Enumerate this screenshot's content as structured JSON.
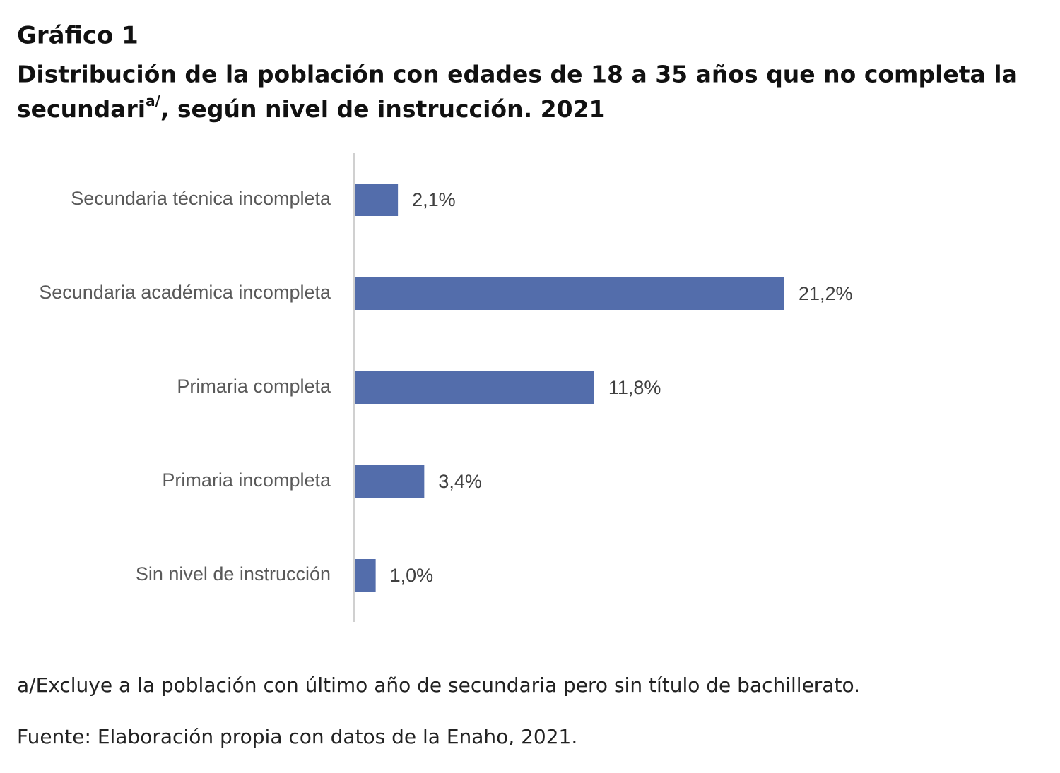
{
  "chart_data": {
    "type": "bar",
    "orientation": "horizontal",
    "figure_label": "Gráfico 1",
    "title": [
      "Distribución de la población con edades de 18 a 35 años que no completa la",
      "secundari",
      "a/",
      ", según nivel de instrucción. 2021"
    ],
    "categories": [
      "Secundaria técnica incompleta",
      "Secundaria académica incompleta",
      "Primaria completa",
      "Primaria incompleta",
      "Sin nivel de instrucción"
    ],
    "values": [
      2.1,
      21.2,
      11.8,
      3.4,
      1.0
    ],
    "value_labels": [
      "2,1%",
      "21,2%",
      "11,8%",
      "3,4%",
      "1,0%"
    ],
    "color": "#536dab",
    "notes": [
      "a/Excluye a la población con último año de secundaria pero sin título de bachillerato.",
      "Fuente: Elaboración propia con datos de la Enaho, 2021."
    ]
  }
}
